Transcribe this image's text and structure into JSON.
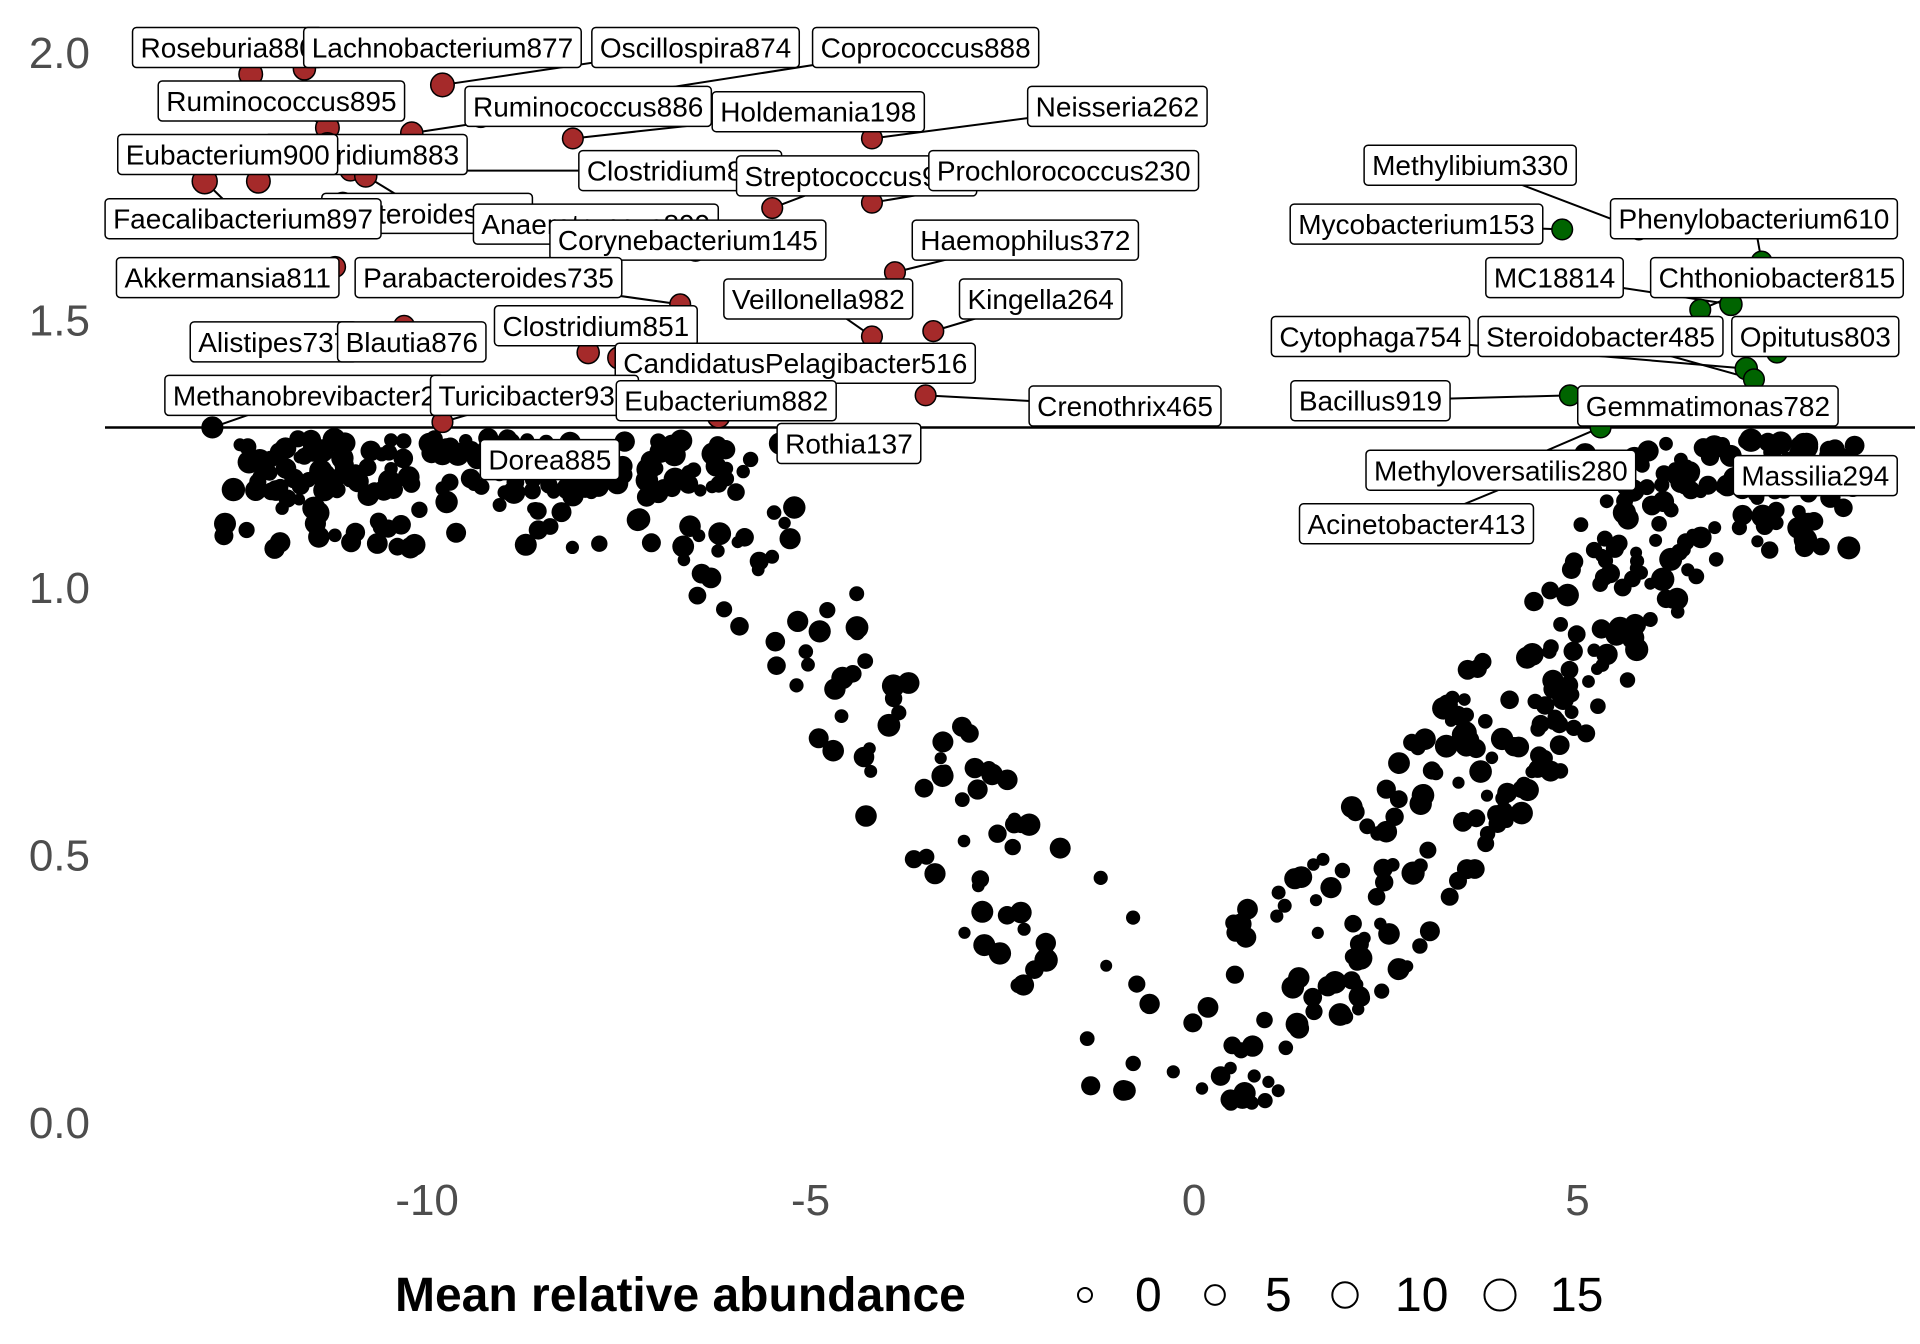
{
  "chart_data": {
    "type": "scatter",
    "x_ticks": [
      "-10",
      "-5",
      "0",
      "5"
    ],
    "y_ticks": [
      "0.0",
      "0.5",
      "1.0",
      "1.5",
      "2.0"
    ],
    "xlim": [
      -14.2,
      9.4
    ],
    "ylim": [
      -0.05,
      2.08
    ],
    "threshold_y": 1.3,
    "colors": {
      "up": "#a52a2a",
      "down": "#006400",
      "ns": "#000000",
      "line": "#000000",
      "label_border": "#000000"
    },
    "legend": {
      "title": "Mean relative abundance",
      "position": "bottom",
      "entries": [
        {
          "label": "0",
          "size": 0
        },
        {
          "label": "5",
          "size": 5
        },
        {
          "label": "10",
          "size": 10
        },
        {
          "label": "15",
          "size": 15
        }
      ]
    },
    "labeled_points": [
      {
        "label": "Roseburia880",
        "x": -12.3,
        "y": 1.96,
        "size": 8,
        "group": "up",
        "lx": -12.6,
        "ly": 2.01
      },
      {
        "label": "Lachnobacterium877",
        "x": -11.6,
        "y": 1.97,
        "size": 7,
        "group": "up",
        "lx": -9.8,
        "ly": 2.01
      },
      {
        "label": "Oscillospira874",
        "x": -9.8,
        "y": 1.94,
        "size": 8,
        "group": "up",
        "lx": -6.5,
        "ly": 2.01
      },
      {
        "label": "Coprococcus888",
        "x": -9.3,
        "y": 1.88,
        "size": 6,
        "group": "up",
        "lx": -3.5,
        "ly": 2.01
      },
      {
        "label": "Ruminococcus895",
        "x": -11.3,
        "y": 1.86,
        "size": 8,
        "group": "up",
        "lx": -11.9,
        "ly": 1.91
      },
      {
        "label": "Ruminococcus886",
        "x": -10.2,
        "y": 1.85,
        "size": 7,
        "group": "up",
        "lx": -7.9,
        "ly": 1.9
      },
      {
        "label": "Holdemania198",
        "x": -8.1,
        "y": 1.84,
        "size": 6,
        "group": "up",
        "lx": -4.9,
        "ly": 1.89
      },
      {
        "label": "Neisseria262",
        "x": -4.2,
        "y": 1.84,
        "size": 6,
        "group": "up",
        "lx": -1.0,
        "ly": 1.9
      },
      {
        "label": "Clostridium883",
        "x": -11.3,
        "y": 1.83,
        "size": 7,
        "group": "up",
        "lx": -10.8,
        "ly": 1.81
      },
      {
        "label": "Eubacterium900",
        "x": -12.2,
        "y": 1.76,
        "size": 8,
        "group": "up",
        "lx": -12.6,
        "ly": 1.81
      },
      {
        "label": "Clostridium894",
        "x": -11.0,
        "y": 1.78,
        "size": 6,
        "group": "up",
        "lx": -6.7,
        "ly": 1.78
      },
      {
        "label": "Streptococcus951",
        "x": -5.5,
        "y": 1.71,
        "size": 6,
        "group": "up",
        "lx": -4.4,
        "ly": 1.77
      },
      {
        "label": "Prochlorococcus230",
        "x": -4.2,
        "y": 1.72,
        "size": 6,
        "group": "up",
        "lx": -1.7,
        "ly": 1.78
      },
      {
        "label": "Bacteroides893",
        "x": -10.8,
        "y": 1.77,
        "size": 7,
        "group": "up",
        "lx": -10.0,
        "ly": 1.7
      },
      {
        "label": "Faecalibacterium897",
        "x": -12.9,
        "y": 1.76,
        "size": 9,
        "group": "up",
        "lx": -12.4,
        "ly": 1.69
      },
      {
        "label": "Anaerotruncus899",
        "x": -11.1,
        "y": 1.72,
        "size": 6,
        "group": "up",
        "lx": -7.8,
        "ly": 1.68
      },
      {
        "label": "Corynebacterium145",
        "x": -6.5,
        "y": 1.63,
        "size": 6,
        "group": "up",
        "lx": -6.6,
        "ly": 1.65
      },
      {
        "label": "Haemophilus372",
        "x": -3.9,
        "y": 1.59,
        "size": 6,
        "group": "up",
        "lx": -2.2,
        "ly": 1.65
      },
      {
        "label": "Akkermansia811",
        "x": -11.2,
        "y": 1.6,
        "size": 6,
        "group": "up",
        "lx": -12.6,
        "ly": 1.58
      },
      {
        "label": "Parabacteroides735",
        "x": -6.7,
        "y": 1.53,
        "size": 6,
        "group": "up",
        "lx": -9.2,
        "ly": 1.58
      },
      {
        "label": "Veillonella982",
        "x": -4.2,
        "y": 1.47,
        "size": 6,
        "group": "up",
        "lx": -4.9,
        "ly": 1.54
      },
      {
        "label": "Kingella264",
        "x": -3.4,
        "y": 1.48,
        "size": 6,
        "group": "up",
        "lx": -2.0,
        "ly": 1.54
      },
      {
        "label": "Alistipes737",
        "x": -11.6,
        "y": 1.45,
        "size": 6,
        "group": "up",
        "lx": -12.0,
        "ly": 1.46
      },
      {
        "label": "Blautia876",
        "x": -10.3,
        "y": 1.49,
        "size": 6,
        "group": "up",
        "lx": -10.2,
        "ly": 1.46
      },
      {
        "label": "Clostridium851",
        "x": -7.9,
        "y": 1.44,
        "size": 7,
        "group": "up",
        "lx": -7.8,
        "ly": 1.49
      },
      {
        "label": "CandidatusPelagibacter516",
        "x": -7.5,
        "y": 1.43,
        "size": 7,
        "group": "up",
        "lx": -5.2,
        "ly": 1.42
      },
      {
        "label": "Crenothrix465",
        "x": -3.5,
        "y": 1.36,
        "size": 6,
        "group": "up",
        "lx": -0.9,
        "ly": 1.34
      },
      {
        "label": "Methanobrevibacter2",
        "x": -12.8,
        "y": 1.3,
        "size": 6,
        "group": "ns",
        "lx": -11.6,
        "ly": 1.36
      },
      {
        "label": "Turicibacter931",
        "x": -9.8,
        "y": 1.31,
        "size": 6,
        "group": "up",
        "lx": -8.6,
        "ly": 1.36
      },
      {
        "label": "Eubacterium882",
        "x": -6.2,
        "y": 1.32,
        "size": 7,
        "group": "up",
        "lx": -6.1,
        "ly": 1.35
      },
      {
        "label": "Rothia137",
        "x": -5.4,
        "y": 1.27,
        "size": 6,
        "group": "ns",
        "lx": -4.5,
        "ly": 1.27
      },
      {
        "label": "Dorea885",
        "x": -9.8,
        "y": 1.25,
        "size": 6,
        "group": "ns",
        "lx": -8.4,
        "ly": 1.24
      },
      {
        "label": "Methylibium330",
        "x": 5.8,
        "y": 1.67,
        "size": 6,
        "group": "down",
        "lx": 3.6,
        "ly": 1.79
      },
      {
        "label": "Mycobacterium153",
        "x": 4.8,
        "y": 1.67,
        "size": 6,
        "group": "down",
        "lx": 2.9,
        "ly": 1.68
      },
      {
        "label": "Phenylobacterium610",
        "x": 7.4,
        "y": 1.61,
        "size": 6,
        "group": "down",
        "lx": 7.3,
        "ly": 1.69
      },
      {
        "label": "MC18814",
        "x": 7.0,
        "y": 1.53,
        "size": 7,
        "group": "down",
        "lx": 4.7,
        "ly": 1.58
      },
      {
        "label": "Chthoniobacter815",
        "x": 6.6,
        "y": 1.52,
        "size": 6,
        "group": "down",
        "lx": 7.6,
        "ly": 1.58
      },
      {
        "label": "Cytophaga754",
        "x": 7.2,
        "y": 1.41,
        "size": 7,
        "group": "down",
        "lx": 2.3,
        "ly": 1.47
      },
      {
        "label": "Steroidobacter485",
        "x": 7.3,
        "y": 1.39,
        "size": 6,
        "group": "down",
        "lx": 5.3,
        "ly": 1.47
      },
      {
        "label": "Opitutus803",
        "x": 7.6,
        "y": 1.44,
        "size": 6,
        "group": "down",
        "lx": 8.1,
        "ly": 1.47
      },
      {
        "label": "Bacillus919",
        "x": 4.9,
        "y": 1.36,
        "size": 6,
        "group": "down",
        "lx": 2.3,
        "ly": 1.35
      },
      {
        "label": "Gemmatimonas782",
        "x": 5.4,
        "y": 1.33,
        "size": 6,
        "group": "down",
        "lx": 6.7,
        "ly": 1.34
      },
      {
        "label": "Methyloversatilis280",
        "x": 5.3,
        "y": 1.3,
        "size": 6,
        "group": "down",
        "lx": 4.0,
        "ly": 1.22
      },
      {
        "label": "Massilia294",
        "x": 7.9,
        "y": 1.25,
        "size": 6,
        "group": "ns",
        "lx": 8.1,
        "ly": 1.21
      },
      {
        "label": "Acinetobacter413",
        "x": 5.1,
        "y": 1.25,
        "size": 6,
        "group": "ns",
        "lx": 2.9,
        "ly": 1.12
      }
    ]
  }
}
